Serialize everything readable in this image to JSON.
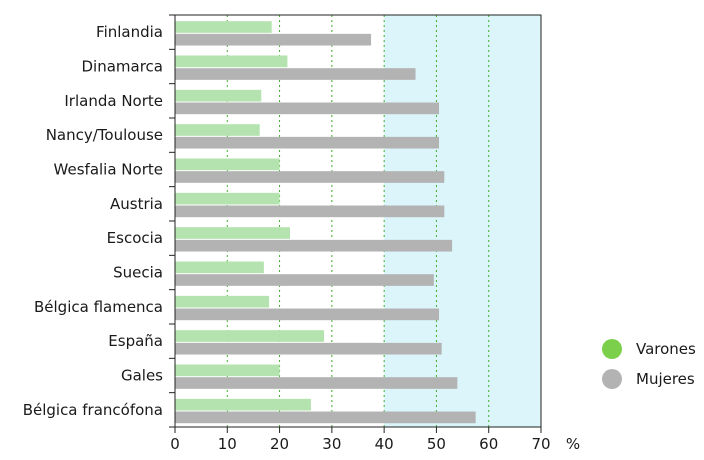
{
  "chart_data": {
    "type": "bar",
    "orientation": "horizontal",
    "categories": [
      "Finlandia",
      "Dinamarca",
      "Irlanda Norte",
      "Nancy/Toulouse",
      "Wesfalia Norte",
      "Austria",
      "Escocia",
      "Suecia",
      "Bélgica flamenca",
      "España",
      "Gales",
      "Bélgica francófona"
    ],
    "series": [
      {
        "name": "Varones",
        "color": "#b5e3b0",
        "values": [
          18.5,
          21.5,
          16.5,
          16.2,
          20,
          20,
          22,
          17,
          18,
          28.5,
          20,
          26
        ]
      },
      {
        "name": "Mujeres",
        "color": "#b3b3b3",
        "values": [
          37.5,
          46,
          50.5,
          50.5,
          51.5,
          51.5,
          53,
          49.5,
          50.5,
          51,
          54,
          57.5
        ]
      }
    ],
    "xlim": [
      0,
      70
    ],
    "xticks": [
      "0",
      "10",
      "20",
      "30",
      "40",
      "50",
      "60",
      "70"
    ],
    "xunit": "%",
    "grid": "vertical dotted",
    "grid_color": "#3fae2a",
    "shaded_region": {
      "from": 40,
      "to": 70,
      "color": "#dbf5fb"
    },
    "legend": "right",
    "legend_marker_colors": [
      "#7ccf4a",
      "#b3b3b3"
    ]
  }
}
